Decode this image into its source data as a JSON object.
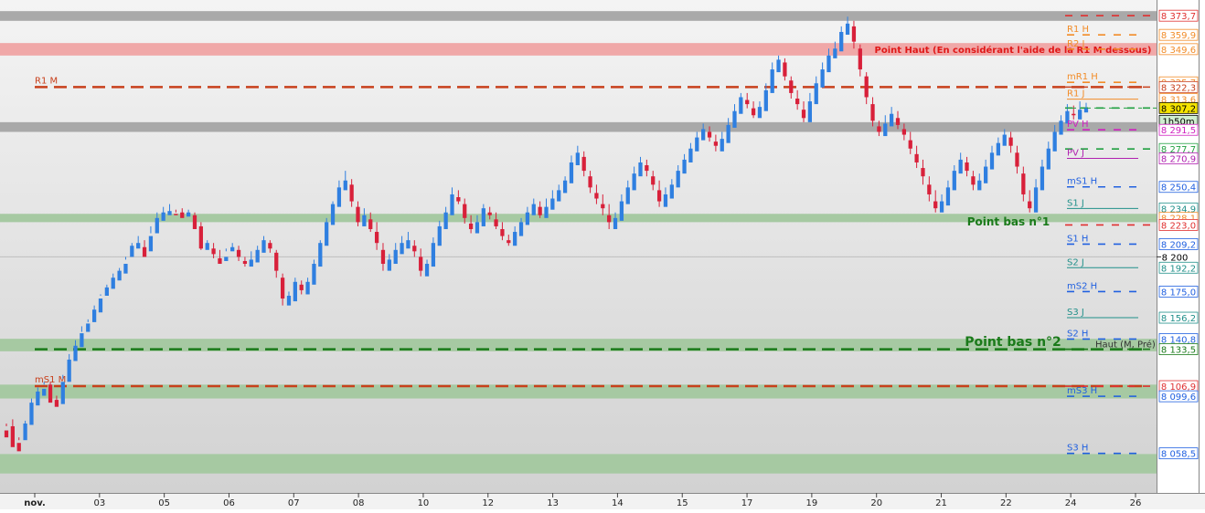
{
  "chart_data": {
    "type": "candlestick",
    "y_range": [
      8030,
      8385
    ],
    "x_tick_labels": [
      {
        "label": "nov.",
        "bold": true
      },
      {
        "label": "03"
      },
      {
        "label": "05"
      },
      {
        "label": "06"
      },
      {
        "label": "07"
      },
      {
        "label": "08"
      },
      {
        "label": "10"
      },
      {
        "label": "12"
      },
      {
        "label": "13"
      },
      {
        "label": "14"
      },
      {
        "label": "15"
      },
      {
        "label": "17"
      },
      {
        "label": "19"
      },
      {
        "label": "20"
      },
      {
        "label": "21"
      },
      {
        "label": "22"
      },
      {
        "label": "24"
      },
      {
        "label": "26"
      }
    ],
    "zones": [
      {
        "name": "grey-top",
        "from": 8370,
        "to": 8377,
        "color": "#a9a9a9"
      },
      {
        "name": "point-haut",
        "from": 8345,
        "to": 8354,
        "color": "#f0a8a8"
      },
      {
        "name": "grey-mid",
        "from": 8290,
        "to": 8297,
        "color": "#a9a9a9"
      },
      {
        "name": "green-1",
        "from": 8225,
        "to": 8231,
        "color": "#a6c9a2"
      },
      {
        "name": "green-2",
        "from": 8132,
        "to": 8141,
        "color": "#a6c9a2"
      },
      {
        "name": "green-3",
        "from": 8098,
        "to": 8108,
        "color": "#a6c9a2"
      },
      {
        "name": "green-4",
        "from": 8044,
        "to": 8058,
        "color": "#a6c9a2"
      }
    ],
    "long_levels": [
      {
        "value": 8322.3,
        "label": "R1 M",
        "color": "#c8401c",
        "width": 2.5
      },
      {
        "value": 8133.5,
        "label": "",
        "color": "#1a7a1a",
        "width": 2.5
      },
      {
        "value": 8106.9,
        "label": "mS1 M",
        "color": "#c8401c",
        "width": 2.5
      }
    ],
    "pivot_levels": [
      {
        "label": "R1 H",
        "value": 8359.9,
        "color": "#f28c28",
        "style": "dashed"
      },
      {
        "label": "R2 J",
        "value": 8349.6,
        "color": "#f28c28",
        "style": "dashed"
      },
      {
        "label": "mR1 H",
        "value": 8325.7,
        "color": "#f28c28",
        "style": "dashed"
      },
      {
        "label": "R1 J",
        "value": 8313.6,
        "color": "#f28c28",
        "style": "solid"
      },
      {
        "label": "PV H",
        "value": 8291.5,
        "color": "#d020c0",
        "style": "dashed"
      },
      {
        "label": "PV J",
        "value": 8270.9,
        "color": "#b020b0",
        "style": "solid"
      },
      {
        "label": "mS1 H",
        "value": 8250.4,
        "color": "#2060e0",
        "style": "dashed"
      },
      {
        "label": "S1 J",
        "value": 8234.9,
        "color": "#20908a",
        "style": "solid"
      },
      {
        "label": "S1 H",
        "value": 8209.2,
        "color": "#2060e0",
        "style": "dashed"
      },
      {
        "label": "S2 J",
        "value": 8192.2,
        "color": "#20908a",
        "style": "solid"
      },
      {
        "label": "mS2 H",
        "value": 8175.0,
        "color": "#2060e0",
        "style": "dashed"
      },
      {
        "label": "S3 J",
        "value": 8156.2,
        "color": "#20908a",
        "style": "solid"
      },
      {
        "label": "S2 H",
        "value": 8140.8,
        "color": "#2060e0",
        "style": "dashed"
      },
      {
        "label": "mS3 H",
        "value": 8099.6,
        "color": "#2060e0",
        "style": "dashed"
      },
      {
        "label": "S3 H",
        "value": 8058.5,
        "color": "#2060e0",
        "style": "dashed"
      }
    ],
    "short_dashed": [
      {
        "value": 8373.7,
        "color": "#e03030"
      },
      {
        "value": 8322.3,
        "color": "#c8401c"
      },
      {
        "value": 8307.2,
        "color": "#20a040"
      },
      {
        "value": 8277.7,
        "color": "#20a040"
      },
      {
        "value": 8223.0,
        "color": "#e03030"
      },
      {
        "value": 8133.5,
        "color": "#1a7a1a"
      },
      {
        "value": 8106.9,
        "color": "#e03030"
      }
    ],
    "price_labels": [
      {
        "value": 8373.7,
        "text": "8 373,7",
        "color": "#e03030"
      },
      {
        "value": 8359.9,
        "text": "8 359,9",
        "color": "#f28c28"
      },
      {
        "value": 8349.6,
        "text": "8 349,6",
        "color": "#f28c28"
      },
      {
        "value": 8325.7,
        "text": "8 325,7",
        "color": "#f28c28"
      },
      {
        "value": 8322.3,
        "text": "8 322,3",
        "color": "#c8401c"
      },
      {
        "value": 8313.6,
        "text": "8 313,6",
        "color": "#f28c28"
      },
      {
        "value": 8307.2,
        "text": "8 307,2",
        "color": "#000000",
        "fill": "#f5e400"
      },
      {
        "value": 8298.0,
        "text": "1h50m",
        "color": "#000000",
        "fill": "#cfeecf"
      },
      {
        "value": 8291.5,
        "text": "8 291,5",
        "color": "#d020c0"
      },
      {
        "value": 8277.7,
        "text": "8 277,7",
        "color": "#20a040"
      },
      {
        "value": 8270.9,
        "text": "8 270,9",
        "color": "#b020b0"
      },
      {
        "value": 8250.4,
        "text": "8 250,4",
        "color": "#2060e0"
      },
      {
        "value": 8234.9,
        "text": "8 234,9",
        "color": "#20908a"
      },
      {
        "value": 8228.1,
        "text": "8 228,1",
        "color": "#f28c28"
      },
      {
        "value": 8223.0,
        "text": "8 223,0",
        "color": "#e03030"
      },
      {
        "value": 8209.2,
        "text": "8 209,2",
        "color": "#2060e0"
      },
      {
        "value": 8192.2,
        "text": "8 192,2",
        "color": "#20908a"
      },
      {
        "value": 8175.0,
        "text": "8 175,0",
        "color": "#2060e0"
      },
      {
        "value": 8156.2,
        "text": "8 156,2",
        "color": "#20908a"
      },
      {
        "value": 8140.8,
        "text": "8 140,8",
        "color": "#2060e0"
      },
      {
        "value": 8133.5,
        "text": "8 133,5",
        "color": "#1a7a1a"
      },
      {
        "value": 8106.9,
        "text": "8 106,9",
        "color": "#e03030"
      },
      {
        "value": 8099.6,
        "text": "8 099,6",
        "color": "#2060e0"
      },
      {
        "value": 8058.5,
        "text": "8 058,5",
        "color": "#2060e0"
      }
    ],
    "scale_tick": {
      "value": 8200,
      "text": "8 200"
    },
    "annotations": [
      {
        "text": "Point Haut (En considérant l'aide de la R1 M dessous)",
        "value": 8349.6,
        "color": "#e01818",
        "size": 10
      },
      {
        "text": "Point bas n°1",
        "value": 8226,
        "color": "#1a7a1a",
        "size": 12
      },
      {
        "text": "Point bas n°2",
        "value": 8139,
        "color": "#1a7a1a",
        "size": 14
      },
      {
        "text": "Haut (M, Pré)",
        "value": 8137.5,
        "color": "#333333",
        "size": 10
      }
    ],
    "current_price": 8307.2,
    "candles": [
      [
        8075,
        8070,
        8080,
        8078
      ],
      [
        8078,
        8063,
        8083,
        8065
      ],
      [
        8066,
        8060,
        8070,
        8068
      ],
      [
        8068,
        8080,
        8082,
        8079
      ],
      [
        8079,
        8095,
        8098,
        8093
      ],
      [
        8093,
        8103,
        8106,
        8100
      ],
      [
        8100,
        8105,
        8110,
        8108
      ],
      [
        8108,
        8095,
        8110,
        8097
      ],
      [
        8097,
        8092,
        8100,
        8094
      ],
      [
        8094,
        8110,
        8115,
        8112
      ],
      [
        8110,
        8126,
        8130,
        8125
      ],
      [
        8125,
        8136,
        8140,
        8135
      ],
      [
        8135,
        8145,
        8150,
        8146
      ],
      [
        8146,
        8152,
        8155,
        8153
      ],
      [
        8153,
        8162,
        8165,
        8160
      ],
      [
        8160,
        8170,
        8173,
        8172
      ],
      [
        8172,
        8178,
        8180,
        8177
      ],
      [
        8177,
        8185,
        8188,
        8183
      ],
      [
        8183,
        8190,
        8192,
        8188
      ],
      [
        8188,
        8195,
        8198,
        8200
      ],
      [
        8200,
        8208,
        8210,
        8206
      ],
      [
        8206,
        8210,
        8215,
        8207
      ],
      [
        8207,
        8200,
        8212,
        8204
      ],
      [
        8204,
        8215,
        8222,
        8217
      ],
      [
        8217,
        8228,
        8232,
        8226
      ],
      [
        8226,
        8232,
        8236,
        8230
      ],
      [
        8230,
        8233,
        8238,
        8231
      ],
      [
        8231,
        8230,
        8234,
        8232
      ],
      [
        8232,
        8228,
        8235,
        8229
      ],
      [
        8229,
        8232,
        8234,
        8230
      ],
      [
        8230,
        8220,
        8232,
        8222
      ],
      [
        8222,
        8206,
        8225,
        8205
      ],
      [
        8205,
        8210,
        8212,
        8206
      ],
      [
        8206,
        8202,
        8210,
        8199
      ],
      [
        8199,
        8195,
        8205,
        8197
      ],
      [
        8197,
        8200,
        8206,
        8204
      ],
      [
        8204,
        8207,
        8210,
        8205
      ],
      [
        8205,
        8200,
        8208,
        8197
      ],
      [
        8197,
        8195,
        8200,
        8193
      ],
      [
        8193,
        8198,
        8204,
        8196
      ],
      [
        8196,
        8205,
        8208,
        8203
      ],
      [
        8203,
        8212,
        8215,
        8210
      ],
      [
        8210,
        8206,
        8212,
        8203
      ],
      [
        8203,
        8190,
        8205,
        8185
      ],
      [
        8185,
        8170,
        8188,
        8165
      ],
      [
        8165,
        8172,
        8175,
        8168
      ],
      [
        8168,
        8182,
        8185,
        8180
      ],
      [
        8180,
        8176,
        8183,
        8173
      ],
      [
        8173,
        8182,
        8185,
        8180
      ],
      [
        8180,
        8195,
        8198,
        8193
      ],
      [
        8193,
        8210,
        8212,
        8208
      ],
      [
        8208,
        8225,
        8228,
        8223
      ],
      [
        8223,
        8238,
        8240,
        8236
      ],
      [
        8236,
        8250,
        8255,
        8248
      ],
      [
        8248,
        8255,
        8262,
        8252
      ],
      [
        8252,
        8240,
        8256,
        8236
      ],
      [
        8236,
        8225,
        8240,
        8222
      ],
      [
        8222,
        8230,
        8235,
        8227
      ],
      [
        8227,
        8220,
        8232,
        8218
      ],
      [
        8218,
        8210,
        8225,
        8205
      ],
      [
        8205,
        8195,
        8210,
        8190
      ],
      [
        8190,
        8198,
        8202,
        8195
      ],
      [
        8195,
        8205,
        8210,
        8202
      ],
      [
        8202,
        8210,
        8215,
        8206
      ],
      [
        8206,
        8212,
        8218,
        8208
      ],
      [
        8208,
        8204,
        8212,
        8200
      ],
      [
        8200,
        8190,
        8206,
        8186
      ],
      [
        8186,
        8195,
        8198,
        8193
      ],
      [
        8193,
        8210,
        8214,
        8208
      ],
      [
        8208,
        8222,
        8226,
        8220
      ],
      [
        8220,
        8232,
        8236,
        8230
      ],
      [
        8230,
        8245,
        8250,
        8243
      ],
      [
        8243,
        8240,
        8248,
        8238
      ],
      [
        8238,
        8228,
        8242,
        8224
      ],
      [
        8224,
        8220,
        8230,
        8217
      ],
      [
        8217,
        8225,
        8230,
        8222
      ],
      [
        8222,
        8235,
        8238,
        8232
      ],
      [
        8232,
        8230,
        8236,
        8227
      ],
      [
        8227,
        8222,
        8232,
        8220
      ],
      [
        8220,
        8215,
        8225,
        8212
      ],
      [
        8212,
        8210,
        8216,
        8208
      ],
      [
        8208,
        8218,
        8222,
        8215
      ],
      [
        8215,
        8225,
        8228,
        8223
      ],
      [
        8223,
        8232,
        8236,
        8230
      ],
      [
        8230,
        8238,
        8242,
        8236
      ],
      [
        8236,
        8230,
        8240,
        8228
      ],
      [
        8228,
        8236,
        8242,
        8234
      ],
      [
        8234,
        8242,
        8248,
        8240
      ],
      [
        8240,
        8248,
        8252,
        8246
      ],
      [
        8246,
        8255,
        8258,
        8253
      ],
      [
        8253,
        8268,
        8273,
        8266
      ],
      [
        8266,
        8275,
        8280,
        8272
      ],
      [
        8272,
        8262,
        8276,
        8258
      ],
      [
        8258,
        8250,
        8262,
        8246
      ],
      [
        8246,
        8242,
        8252,
        8238
      ],
      [
        8238,
        8235,
        8245,
        8230
      ],
      [
        8230,
        8225,
        8238,
        8220
      ],
      [
        8220,
        8228,
        8232,
        8226
      ],
      [
        8226,
        8240,
        8245,
        8238
      ],
      [
        8238,
        8250,
        8255,
        8248
      ],
      [
        8248,
        8260,
        8265,
        8258
      ],
      [
        8258,
        8268,
        8272,
        8266
      ],
      [
        8266,
        8262,
        8270,
        8258
      ],
      [
        8258,
        8252,
        8262,
        8248
      ],
      [
        8248,
        8240,
        8255,
        8236
      ],
      [
        8236,
        8245,
        8250,
        8242
      ],
      [
        8242,
        8252,
        8256,
        8250
      ],
      [
        8250,
        8262,
        8266,
        8260
      ],
      [
        8260,
        8270,
        8274,
        8268
      ],
      [
        8268,
        8278,
        8282,
        8276
      ],
      [
        8276,
        8286,
        8290,
        8284
      ],
      [
        8284,
        8292,
        8296,
        8290
      ],
      [
        8290,
        8286,
        8294,
        8283
      ],
      [
        8283,
        8280,
        8288,
        8276
      ],
      [
        8276,
        8285,
        8290,
        8282
      ],
      [
        8282,
        8295,
        8300,
        8293
      ],
      [
        8293,
        8305,
        8310,
        8303
      ],
      [
        8303,
        8315,
        8318,
        8313
      ],
      [
        8313,
        8310,
        8318,
        8307
      ],
      [
        8307,
        8302,
        8312,
        8300
      ],
      [
        8300,
        8308,
        8312,
        8305
      ],
      [
        8305,
        8320,
        8325,
        8318
      ],
      [
        8318,
        8335,
        8340,
        8333
      ],
      [
        8333,
        8342,
        8345,
        8340
      ],
      [
        8340,
        8330,
        8343,
        8327
      ],
      [
        8327,
        8318,
        8330,
        8314
      ],
      [
        8314,
        8310,
        8320,
        8306
      ],
      [
        8306,
        8300,
        8312,
        8297
      ],
      [
        8297,
        8312,
        8318,
        8310
      ],
      [
        8310,
        8325,
        8330,
        8322
      ],
      [
        8322,
        8335,
        8340,
        8333
      ],
      [
        8333,
        8345,
        8350,
        8343
      ],
      [
        8343,
        8350,
        8355,
        8348
      ],
      [
        8348,
        8362,
        8366,
        8360
      ],
      [
        8360,
        8368,
        8373,
        8366
      ],
      [
        8366,
        8355,
        8370,
        8350
      ],
      [
        8350,
        8335,
        8353,
        8330
      ],
      [
        8330,
        8315,
        8333,
        8310
      ],
      [
        8310,
        8298,
        8315,
        8294
      ],
      [
        8294,
        8290,
        8298,
        8287
      ],
      [
        8287,
        8296,
        8302,
        8294
      ],
      [
        8294,
        8303,
        8308,
        8300
      ],
      [
        8300,
        8295,
        8305,
        8292
      ],
      [
        8292,
        8288,
        8296,
        8284
      ],
      [
        8284,
        8278,
        8290,
        8274
      ],
      [
        8274,
        8268,
        8280,
        8264
      ],
      [
        8264,
        8258,
        8270,
        8252
      ],
      [
        8252,
        8245,
        8258,
        8240
      ],
      [
        8240,
        8235,
        8248,
        8232
      ],
      [
        8232,
        8240,
        8245,
        8237
      ],
      [
        8237,
        8250,
        8255,
        8248
      ],
      [
        8248,
        8262,
        8266,
        8260
      ],
      [
        8260,
        8270,
        8275,
        8268
      ],
      [
        8268,
        8262,
        8272,
        8258
      ],
      [
        8258,
        8252,
        8262,
        8248
      ],
      [
        8248,
        8255,
        8260,
        8253
      ],
      [
        8253,
        8265,
        8270,
        8263
      ],
      [
        8263,
        8275,
        8280,
        8273
      ],
      [
        8273,
        8282,
        8286,
        8280
      ],
      [
        8280,
        8288,
        8292,
        8286
      ],
      [
        8286,
        8280,
        8290,
        8275
      ],
      [
        8275,
        8265,
        8280,
        8260
      ],
      [
        8260,
        8245,
        8265,
        8240
      ],
      [
        8240,
        8235,
        8248,
        8232
      ],
      [
        8232,
        8250,
        8256,
        8248
      ],
      [
        8248,
        8265,
        8270,
        8263
      ],
      [
        8263,
        8278,
        8283,
        8276
      ],
      [
        8276,
        8290,
        8295,
        8288
      ],
      [
        8288,
        8298,
        8302,
        8296
      ],
      [
        8296,
        8305,
        8310,
        8303
      ],
      [
        8303,
        8302,
        8309,
        8299
      ],
      [
        8299,
        8306,
        8312,
        8304
      ],
      [
        8304,
        8307,
        8311,
        8305
      ]
    ]
  }
}
